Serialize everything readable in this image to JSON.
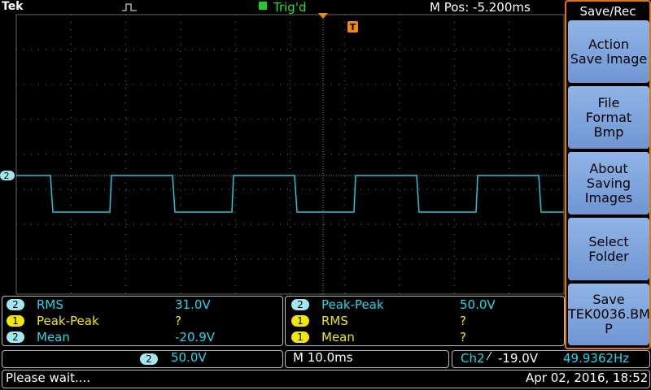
{
  "header": {
    "brand": "Tek",
    "trigger_state": "Trig'd",
    "position": "M Pos: -5.200ms"
  },
  "markers": {
    "channel": "2",
    "trigger": "T"
  },
  "menu": {
    "title": "Save/Rec",
    "buttons": [
      [
        "Action",
        "Save Image"
      ],
      [
        "File",
        "Format",
        "Bmp"
      ],
      [
        "About",
        "Saving",
        "Images"
      ],
      [
        "Select",
        "Folder"
      ],
      [
        "Save",
        "TEK0036.BM",
        "P"
      ]
    ]
  },
  "measurements": {
    "left": [
      [
        "2",
        "RMS",
        "31.0V"
      ],
      [
        "1",
        "Peak-Peak",
        "?"
      ],
      [
        "2",
        "Mean",
        "-20.9V"
      ]
    ],
    "right": [
      [
        "2",
        "Peak-Peak",
        "50.0V"
      ],
      [
        "1",
        "RMS",
        "?"
      ],
      [
        "1",
        "Mean",
        "?"
      ]
    ]
  },
  "status": {
    "channel": "2",
    "scale": "50.0V",
    "timebase": "M 10.0ms",
    "trigger_source": "Ch2",
    "trigger_level": "-19.0V",
    "frequency": "49.9362Hz"
  },
  "footer": {
    "message": "Please wait....",
    "datetime": "Apr 02, 2016, 18:52"
  }
}
